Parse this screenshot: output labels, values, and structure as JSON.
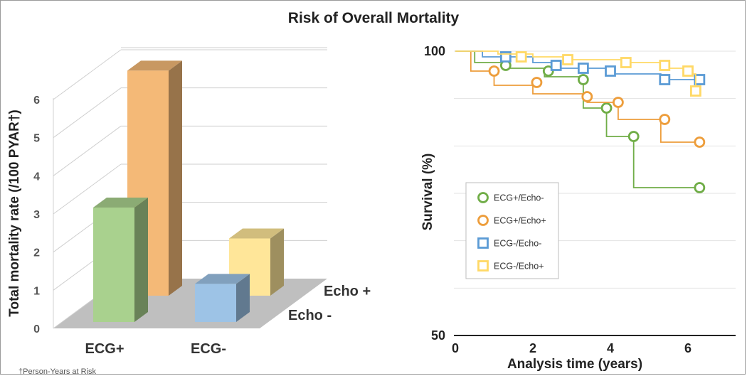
{
  "title": "Risk of Overall Mortality",
  "footnote": "†Person-Years at Risk",
  "chart_data": [
    {
      "type": "bar",
      "subtype": "3d-bar",
      "ylabel": "Total mortality rate (/100 PYAR†)",
      "ylim": [
        0,
        6
      ],
      "yticks": [
        "0",
        "1",
        "2",
        "3",
        "4",
        "5",
        "6"
      ],
      "categories": [
        "ECG+",
        "ECG-"
      ],
      "depth_labels": [
        "Echo -",
        "Echo +"
      ],
      "series": [
        {
          "name": "Echo -",
          "values": [
            3.0,
            1.0
          ],
          "colors": [
            "#a9d18e",
            "#9dc3e6"
          ]
        },
        {
          "name": "Echo +",
          "values": [
            5.9,
            1.5
          ],
          "colors": [
            "#f4b977",
            "#ffe699"
          ]
        }
      ],
      "grid": true
    },
    {
      "type": "line",
      "subtype": "kaplan-meier",
      "xlabel": "Analysis time (years)",
      "ylabel": "Survival (%)",
      "xlim": [
        0,
        7
      ],
      "ylim": [
        50,
        100
      ],
      "xticks": [
        "0",
        "2",
        "4",
        "6"
      ],
      "yticks": [
        "50",
        "100"
      ],
      "legend_position": "center-left",
      "series": [
        {
          "name": "ECG+/Echo-",
          "color": "#70ad47",
          "steps": [
            [
              0,
              100
            ],
            [
              0.5,
              100
            ],
            [
              0.5,
              98
            ],
            [
              1.3,
              98
            ],
            [
              1.3,
              97
            ],
            [
              2.3,
              97
            ],
            [
              2.3,
              95.5
            ],
            [
              3.3,
              95.5
            ],
            [
              3.3,
              90
            ],
            [
              3.9,
              90
            ],
            [
              3.9,
              85
            ],
            [
              4.6,
              85
            ],
            [
              4.6,
              76
            ],
            [
              6.3,
              76
            ]
          ],
          "markers": [
            [
              1.3,
              97.5
            ],
            [
              2.4,
              96.5
            ],
            [
              3.3,
              95
            ],
            [
              3.9,
              90
            ],
            [
              4.6,
              85
            ],
            [
              6.3,
              76
            ]
          ]
        },
        {
          "name": "ECG+/Echo+",
          "color": "#ed9d3b",
          "steps": [
            [
              0,
              100
            ],
            [
              0.4,
              100
            ],
            [
              0.4,
              96.5
            ],
            [
              1.0,
              96.5
            ],
            [
              1.0,
              94
            ],
            [
              2.0,
              94
            ],
            [
              2.0,
              92.5
            ],
            [
              3.4,
              92.5
            ],
            [
              3.4,
              91
            ],
            [
              4.2,
              91
            ],
            [
              4.2,
              88
            ],
            [
              5.3,
              88
            ],
            [
              5.3,
              84
            ],
            [
              6.3,
              84
            ]
          ],
          "markers": [
            [
              1.0,
              96.5
            ],
            [
              2.1,
              94.5
            ],
            [
              3.4,
              92
            ],
            [
              4.2,
              91
            ],
            [
              5.4,
              88
            ],
            [
              6.3,
              84
            ]
          ]
        },
        {
          "name": "ECG-/Echo-",
          "color": "#5b9bd5",
          "steps": [
            [
              0,
              100
            ],
            [
              0.7,
              100
            ],
            [
              0.7,
              99
            ],
            [
              2.0,
              99
            ],
            [
              2.0,
              98
            ],
            [
              2.5,
              98
            ],
            [
              2.5,
              97
            ],
            [
              4.0,
              97
            ],
            [
              4.0,
              96
            ],
            [
              5.3,
              96
            ],
            [
              5.3,
              95
            ],
            [
              6.3,
              95
            ]
          ],
          "markers": [
            [
              1.3,
              99
            ],
            [
              2.6,
              97.5
            ],
            [
              3.3,
              97
            ],
            [
              4.0,
              96.5
            ],
            [
              5.4,
              95
            ],
            [
              6.3,
              95
            ]
          ]
        },
        {
          "name": "ECG-/Echo+",
          "color": "#ffd966",
          "steps": [
            [
              0,
              100
            ],
            [
              1.1,
              100
            ],
            [
              1.1,
              99.5
            ],
            [
              2.0,
              99.5
            ],
            [
              2.0,
              99
            ],
            [
              3.0,
              99
            ],
            [
              3.0,
              98.5
            ],
            [
              4.4,
              98.5
            ],
            [
              4.4,
              98
            ],
            [
              5.4,
              98
            ],
            [
              5.4,
              97
            ],
            [
              6.0,
              97
            ],
            [
              6.0,
              96
            ],
            [
              6.2,
              96
            ],
            [
              6.2,
              93
            ],
            [
              6.3,
              93
            ]
          ],
          "markers": [
            [
              1.7,
              99
            ],
            [
              2.9,
              98.5
            ],
            [
              4.4,
              98
            ],
            [
              5.4,
              97.5
            ],
            [
              6.0,
              96.5
            ],
            [
              6.2,
              93
            ]
          ]
        }
      ],
      "grid": true
    }
  ]
}
